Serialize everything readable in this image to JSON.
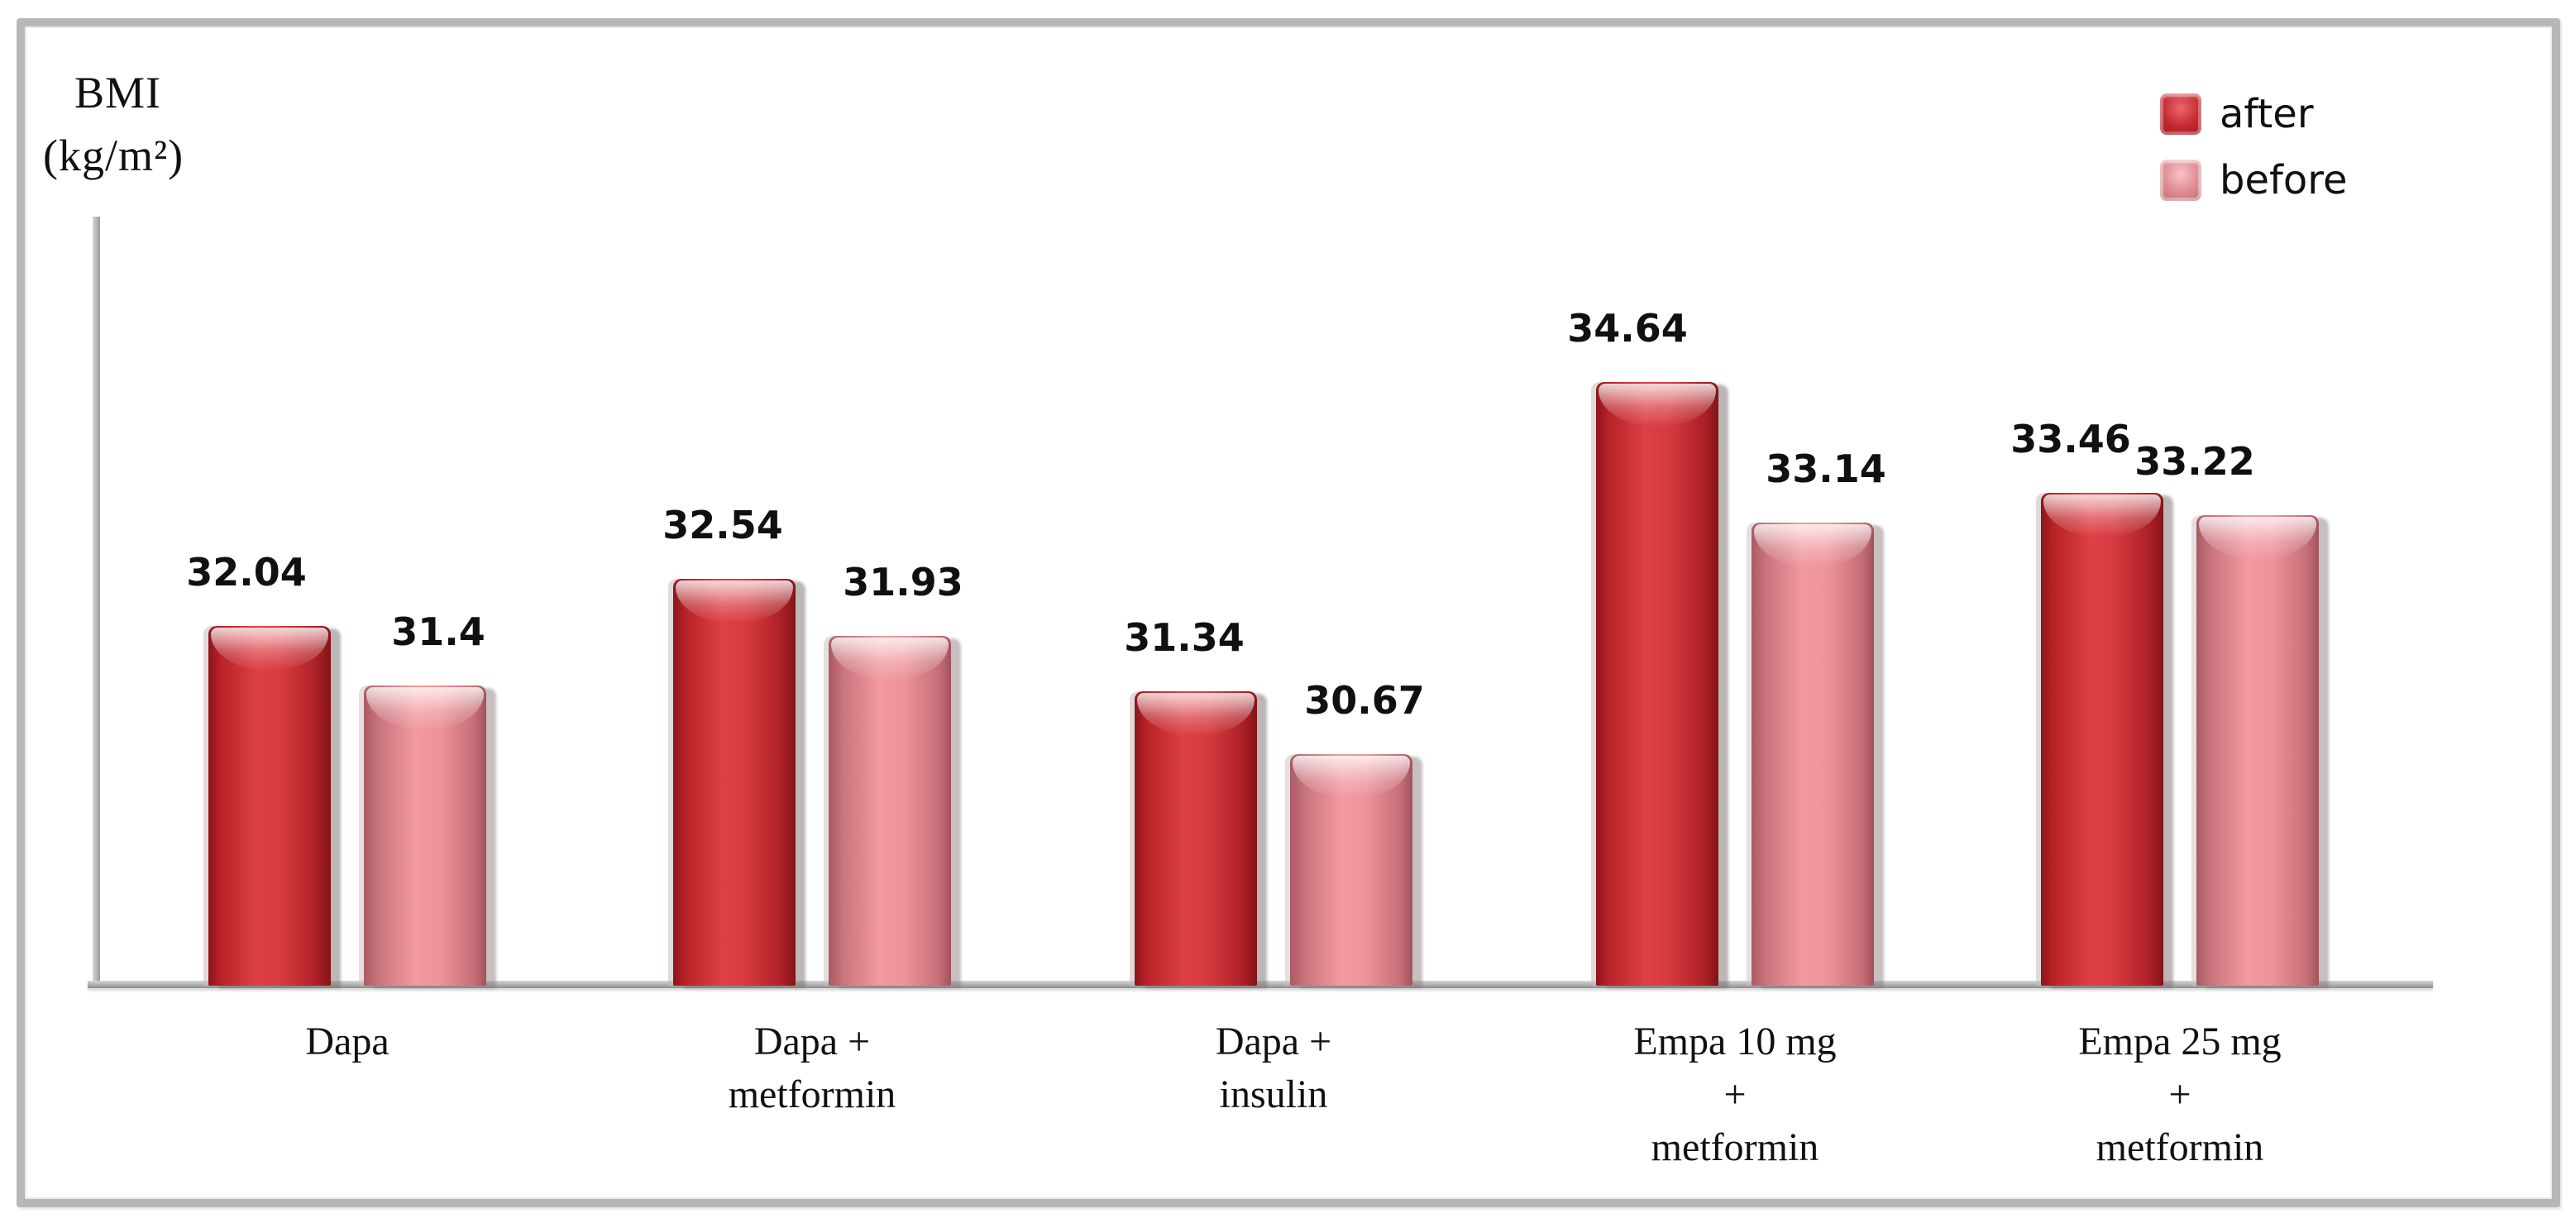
{
  "y_axis_label": {
    "line1": "BMI",
    "line2": "(kg/m²)"
  },
  "legend": {
    "items": [
      {
        "label": "after",
        "color": "#c5262b"
      },
      {
        "label": "before",
        "color": "#ef99a0"
      }
    ]
  },
  "chart_data": {
    "type": "bar",
    "title": "",
    "ylabel": "BMI (kg/m²)",
    "xlabel": "",
    "categories": [
      "Dapa",
      "Dapa + metformin",
      "Dapa + insulin",
      "Empa 10 mg + metformin",
      "Empa 25 mg + metformin"
    ],
    "categories_multiline": [
      [
        "Dapa"
      ],
      [
        "Dapa +",
        "metformin"
      ],
      [
        "Dapa +",
        "insulin"
      ],
      [
        "Empa 10 mg",
        "+",
        "metformin"
      ],
      [
        "Empa 25 mg",
        "+",
        "metformin"
      ]
    ],
    "series": [
      {
        "name": "after",
        "color": "#c5262b",
        "values": [
          32.04,
          32.54,
          31.34,
          34.64,
          33.46
        ]
      },
      {
        "name": "before",
        "color": "#ef99a0",
        "values": [
          31.4,
          31.93,
          30.67,
          33.14,
          33.22
        ]
      }
    ],
    "data_labels": {
      "after": [
        "32.04",
        "32.54",
        "31.34",
        "34.64",
        "33.46"
      ],
      "before": [
        "31.4",
        "31.93",
        "30.67",
        "33.14",
        "33.22"
      ]
    },
    "ylim": [
      28.2,
      36.4
    ],
    "grid": false,
    "y_tick_labels_visible": false,
    "legend_position": "top-right"
  }
}
